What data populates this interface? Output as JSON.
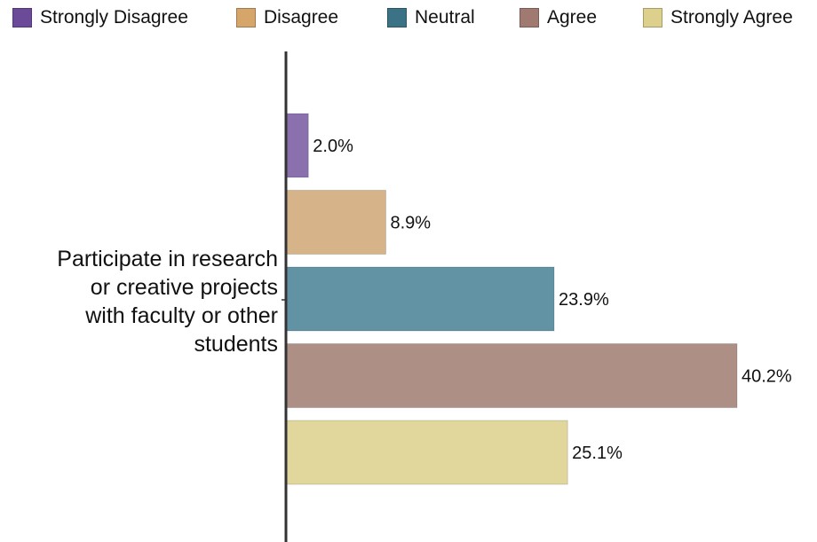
{
  "chart_data": {
    "type": "bar",
    "orientation": "horizontal",
    "category": "Participate in research or creative projects with faculty or other students",
    "category_lines": [
      "Participate in research",
      "or creative projects",
      "with faculty or other",
      "students"
    ],
    "series": [
      {
        "name": "Strongly Disagree",
        "value": 2.0,
        "label": "2.0%",
        "color": "#8a70ad",
        "legend_color": "#6c4a9a"
      },
      {
        "name": "Disagree",
        "value": 8.9,
        "label": "8.9%",
        "color": "#d6b389",
        "legend_color": "#d5a56a"
      },
      {
        "name": "Neutral",
        "value": 23.9,
        "label": "23.9%",
        "color": "#6193a5",
        "legend_color": "#3b7286"
      },
      {
        "name": "Agree",
        "value": 40.2,
        "label": "40.2%",
        "color": "#ae8f86",
        "legend_color": "#a07a70"
      },
      {
        "name": "Strongly Agree",
        "value": 25.1,
        "label": "25.1%",
        "color": "#e1d79d",
        "legend_color": "#ddd08c"
      }
    ],
    "legend_position": "top",
    "grid": false,
    "xlim": [
      0,
      40.2
    ]
  }
}
